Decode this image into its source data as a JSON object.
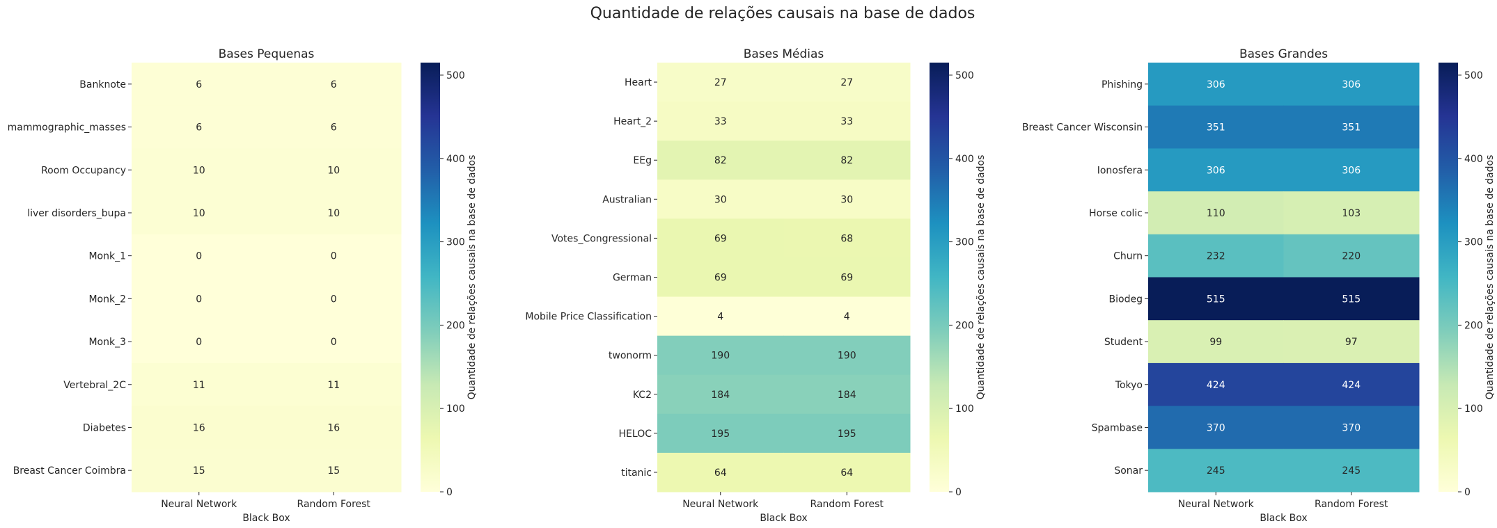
{
  "figure": {
    "suptitle": "Quantidade de relações causais na base de dados",
    "colorbar_label": "Quantidade de relações causais na base de dados",
    "colormap": [
      "#ffffd9",
      "#edf8b1",
      "#c7e9b4",
      "#7fcdbb",
      "#41b6c4",
      "#1d91c0",
      "#225ea8",
      "#253494",
      "#081d58"
    ],
    "colorbar_ticks": [
      0,
      100,
      200,
      300,
      400,
      500
    ],
    "vmin": 0,
    "vmax": 515
  },
  "chart_data": [
    {
      "type": "heatmap",
      "title": "Bases Pequenas",
      "xlabel": "Black Box",
      "ylabel": "",
      "columns": [
        "Neural Network",
        "Random Forest"
      ],
      "rows": [
        "Banknote",
        "mammographic_masses",
        "Room Occupancy",
        "liver disorders_bupa",
        "Monk_1",
        "Monk_2",
        "Monk_3",
        "Vertebral_2C",
        "Diabetes",
        "Breast Cancer Coimbra"
      ],
      "values": [
        [
          6,
          6
        ],
        [
          6,
          6
        ],
        [
          10,
          10
        ],
        [
          10,
          10
        ],
        [
          0,
          0
        ],
        [
          0,
          0
        ],
        [
          0,
          0
        ],
        [
          11,
          11
        ],
        [
          16,
          16
        ],
        [
          15,
          15
        ]
      ]
    },
    {
      "type": "heatmap",
      "title": "Bases Médias",
      "xlabel": "Black Box",
      "ylabel": "",
      "columns": [
        "Neural Network",
        "Random Forest"
      ],
      "rows": [
        "Heart",
        "Heart_2",
        "EEg",
        "Australian",
        "Votes_Congressional",
        "German",
        "Mobile Price Classification",
        "twonorm",
        "KC2",
        "HELOC",
        "titanic"
      ],
      "values": [
        [
          27,
          27
        ],
        [
          33,
          33
        ],
        [
          82,
          82
        ],
        [
          30,
          30
        ],
        [
          69,
          68
        ],
        [
          69,
          69
        ],
        [
          4,
          4
        ],
        [
          190,
          190
        ],
        [
          184,
          184
        ],
        [
          195,
          195
        ],
        [
          64,
          64
        ]
      ]
    },
    {
      "type": "heatmap",
      "title": "Bases Grandes",
      "xlabel": "Black Box",
      "ylabel": "",
      "columns": [
        "Neural Network",
        "Random Forest"
      ],
      "rows": [
        "Phishing",
        "Breast Cancer Wisconsin",
        "Ionosfera",
        "Horse colic",
        "Churn",
        "Biodeg",
        "Student",
        "Tokyo",
        "Spambase",
        "Sonar"
      ],
      "values": [
        [
          306,
          306
        ],
        [
          351,
          351
        ],
        [
          306,
          306
        ],
        [
          110,
          103
        ],
        [
          232,
          220
        ],
        [
          515,
          515
        ],
        [
          99,
          97
        ],
        [
          424,
          424
        ],
        [
          370,
          370
        ],
        [
          245,
          245
        ]
      ]
    }
  ]
}
